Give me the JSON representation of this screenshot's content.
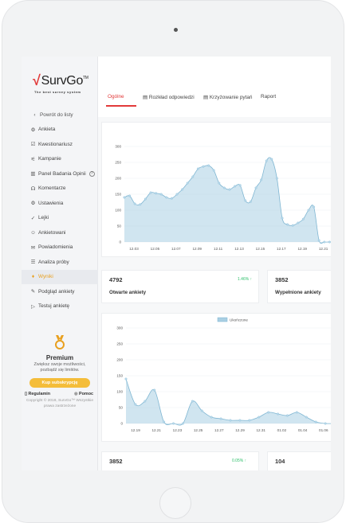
{
  "brand": {
    "name": "SurvGo",
    "tm": "TM",
    "tagline": "The best survey system",
    "accent": "#e23a3a"
  },
  "sidebar": {
    "back": "Powrót do listy",
    "items": [
      {
        "label": "Ankieta",
        "icon": "gear-icon",
        "glyph": "⚙"
      },
      {
        "label": "Kwestionariusz",
        "icon": "checkbox-icon",
        "glyph": "☑"
      },
      {
        "label": "Kampanie",
        "icon": "megaphone-icon",
        "glyph": "⚟"
      },
      {
        "label": "Panel Badania Opinii",
        "icon": "panel-icon",
        "glyph": "▥"
      },
      {
        "label": "Komentarze",
        "icon": "comments-icon",
        "glyph": "☊"
      },
      {
        "label": "Ustawienia",
        "icon": "settings-icon",
        "glyph": "⚙"
      },
      {
        "label": "Lejki",
        "icon": "check-icon",
        "glyph": "✓"
      },
      {
        "label": "Ankietowani",
        "icon": "users-icon",
        "glyph": "☺"
      },
      {
        "label": "Powiadomienia",
        "icon": "mail-icon",
        "glyph": "✉"
      },
      {
        "label": "Analiza próby",
        "icon": "list-icon",
        "glyph": "☰"
      },
      {
        "label": "Wyniki",
        "icon": "results-icon",
        "glyph": "♦"
      },
      {
        "label": "Podgląd ankiety",
        "icon": "preview-icon",
        "glyph": "✎"
      },
      {
        "label": "Testuj ankietę",
        "icon": "play-icon",
        "glyph": "▷"
      }
    ],
    "active_item": "Wyniki",
    "help_glyph": "?",
    "premium": {
      "title": "Premium",
      "desc": "Zwiększ swoje możliwości, pozbądź się limitów.",
      "button": "Kup subskrypcję",
      "regulamin": "Regulamin",
      "pomoc": "Pomoc",
      "copyright": "Copyright © 2018, SurvGo™ Wszystkie prawa zastrzeżone"
    }
  },
  "tabs": [
    {
      "label": "Ogólne",
      "active": true
    },
    {
      "label": "Rozkład odpowiedzi",
      "glyph": "▤"
    },
    {
      "label": "Krzyżowanie pytań",
      "glyph": "▤"
    },
    {
      "label": "Raport"
    }
  ],
  "stats": [
    {
      "value": "4792",
      "label": "Otwarte ankiety",
      "pct": "1.46% ↑"
    },
    {
      "value": "3852",
      "label": "Wypełnione ankiety"
    },
    {
      "value": "3852",
      "pct": "0.05% ↑"
    },
    {
      "value": "104"
    }
  ],
  "chart_data": [
    {
      "type": "area",
      "title": "",
      "ylim": [
        0,
        300
      ],
      "yticks": [
        0,
        50,
        100,
        150,
        200,
        250,
        300
      ],
      "x_ticks": [
        "12.03",
        "12.05",
        "12.07",
        "12.09",
        "12.11",
        "12.13",
        "12.15",
        "12.17",
        "12.19",
        "12.21"
      ],
      "x_index": [
        0,
        1,
        2,
        3,
        4,
        5,
        6,
        7,
        8,
        9,
        10,
        11,
        12,
        13,
        14,
        15,
        16,
        17,
        18,
        19,
        20,
        21,
        22,
        23,
        24,
        25,
        26,
        27,
        28,
        29,
        30,
        31,
        32,
        33,
        34,
        35,
        36,
        37,
        38,
        39,
        40
      ],
      "values": [
        140,
        145,
        120,
        118,
        135,
        155,
        153,
        150,
        140,
        137,
        150,
        165,
        185,
        205,
        230,
        237,
        240,
        225,
        185,
        170,
        165,
        175,
        178,
        130,
        127,
        170,
        195,
        255,
        260,
        200,
        75,
        55,
        52,
        60,
        72,
        100,
        110,
        5,
        0,
        0,
        0
      ],
      "grid": true,
      "color": "#a9cfe3"
    },
    {
      "type": "area",
      "title": "",
      "legend": [
        "Ukończone"
      ],
      "legend_position": "top-center",
      "ylim": [
        0,
        300
      ],
      "yticks": [
        0,
        50,
        100,
        150,
        200,
        250,
        300
      ],
      "x_ticks": [
        "12.19",
        "12.21",
        "12.23",
        "12.25",
        "12.27",
        "12.29",
        "12.31",
        "01.02",
        "01.04",
        "01.06"
      ],
      "values": [
        140,
        60,
        70,
        105,
        5,
        0,
        0,
        70,
        40,
        20,
        15,
        10,
        10,
        10,
        20,
        35,
        30,
        25,
        35,
        20,
        5,
        0,
        0
      ],
      "grid": true,
      "color": "#a9cfe3"
    }
  ]
}
